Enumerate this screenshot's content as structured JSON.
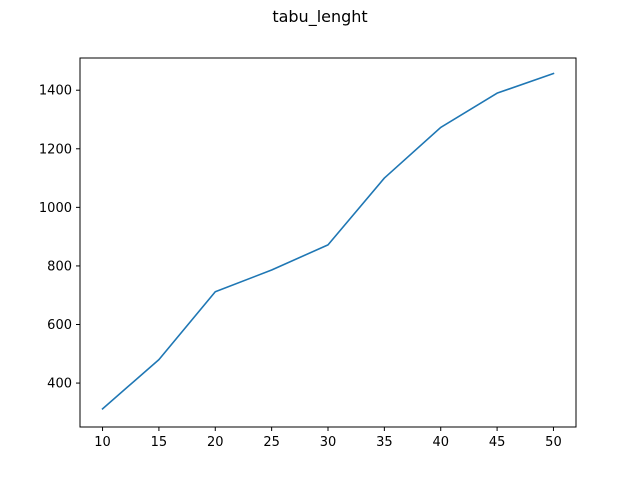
{
  "chart_data": {
    "type": "line",
    "title": "tabu_lenght",
    "xlabel": "",
    "ylabel": "",
    "x": [
      10,
      15,
      20,
      25,
      30,
      35,
      40,
      45,
      50
    ],
    "series": [
      {
        "values": [
          312,
          480,
          712,
          786,
          872,
          1100,
          1273,
          1390,
          1457
        ],
        "color": "#1f77b4"
      }
    ],
    "xlim": [
      8,
      52
    ],
    "ylim": [
      250,
      1510
    ],
    "xticks": [
      10,
      15,
      20,
      25,
      30,
      35,
      40,
      45,
      50
    ],
    "yticks": [
      400,
      600,
      800,
      1000,
      1200,
      1400
    ],
    "grid": false,
    "legend": "none"
  }
}
